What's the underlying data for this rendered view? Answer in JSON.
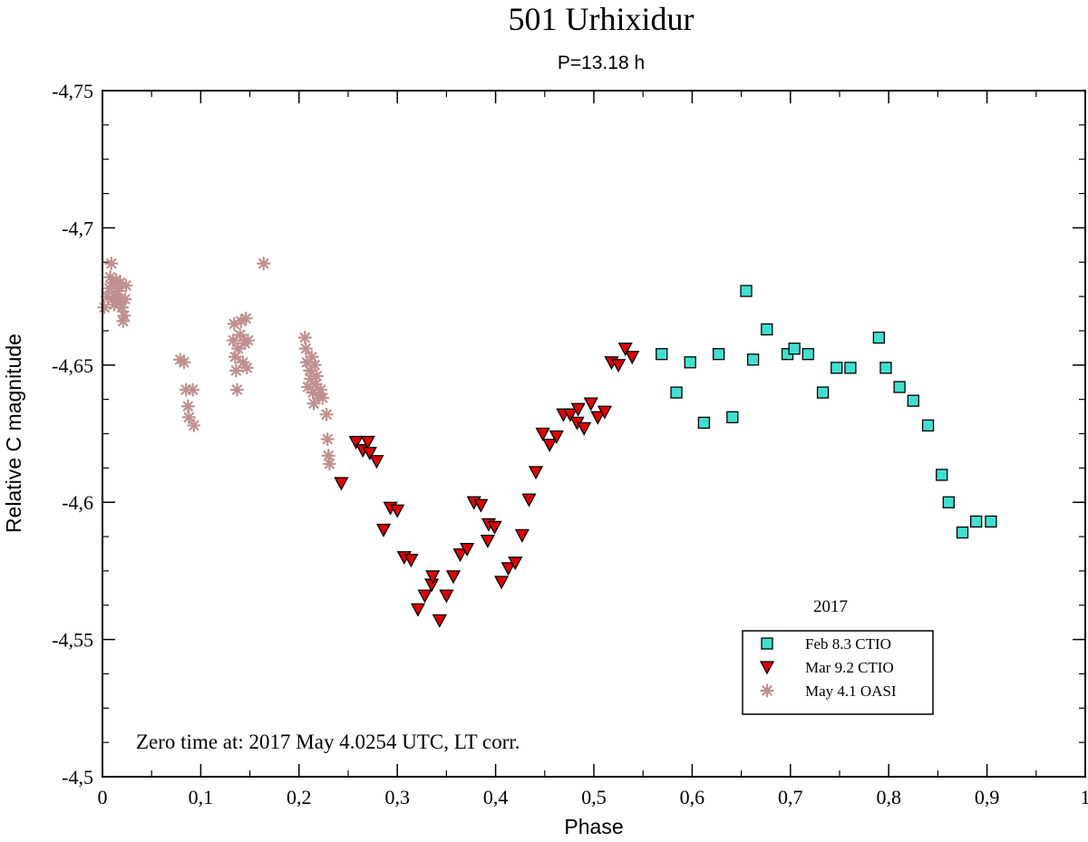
{
  "chart_data": {
    "type": "scatter",
    "title": "501 Urhixidur",
    "subtitle": "P=13.18 h",
    "xlabel": "Phase",
    "ylabel": "Relative C magnitude",
    "xlim": [
      0,
      1
    ],
    "ylim": [
      -4.75,
      -4.5
    ],
    "x_inverted": false,
    "y_inverted": true,
    "xticks": [
      0,
      0.1,
      0.2,
      0.3,
      0.4,
      0.5,
      0.6,
      0.7,
      0.8,
      0.9,
      1
    ],
    "xtick_labels": [
      "0",
      "0,1",
      "0,2",
      "0,3",
      "0,4",
      "0,5",
      "0,6",
      "0,7",
      "0,8",
      "0,9",
      "1"
    ],
    "yticks": [
      -4.75,
      -4.7,
      -4.65,
      -4.6,
      -4.55,
      -4.5
    ],
    "ytick_labels": [
      "-4,75",
      "-4,7",
      "-4,65",
      "-4,6",
      "-4,55",
      "-4,5"
    ],
    "legend_title": "2017",
    "legend_position": "bottom-right",
    "annotation": "Zero time at: 2017 May 4.0254 UTC,  LT corr.",
    "series": [
      {
        "name": "Feb 8.3 CTIO",
        "marker": "square",
        "color": "#40e0d0",
        "points": [
          [
            0.569,
            -4.654
          ],
          [
            0.584,
            -4.64
          ],
          [
            0.598,
            -4.651
          ],
          [
            0.612,
            -4.629
          ],
          [
            0.627,
            -4.654
          ],
          [
            0.641,
            -4.631
          ],
          [
            0.655,
            -4.677
          ],
          [
            0.662,
            -4.652
          ],
          [
            0.676,
            -4.663
          ],
          [
            0.697,
            -4.654
          ],
          [
            0.704,
            -4.656
          ],
          [
            0.718,
            -4.654
          ],
          [
            0.733,
            -4.64
          ],
          [
            0.747,
            -4.649
          ],
          [
            0.761,
            -4.649
          ],
          [
            0.79,
            -4.66
          ],
          [
            0.797,
            -4.649
          ],
          [
            0.811,
            -4.642
          ],
          [
            0.825,
            -4.637
          ],
          [
            0.84,
            -4.628
          ],
          [
            0.854,
            -4.61
          ],
          [
            0.861,
            -4.6
          ],
          [
            0.875,
            -4.589
          ],
          [
            0.889,
            -4.593
          ],
          [
            0.904,
            -4.593
          ]
        ]
      },
      {
        "name": "Mar 9.2 CTIO",
        "marker": "triangle-down",
        "color": "#e00000",
        "points": [
          [
            0.243,
            -4.607
          ],
          [
            0.258,
            -4.622
          ],
          [
            0.265,
            -4.619
          ],
          [
            0.27,
            -4.622
          ],
          [
            0.272,
            -4.618
          ],
          [
            0.279,
            -4.615
          ],
          [
            0.286,
            -4.59
          ],
          [
            0.293,
            -4.598
          ],
          [
            0.3,
            -4.597
          ],
          [
            0.307,
            -4.58
          ],
          [
            0.314,
            -4.579
          ],
          [
            0.321,
            -4.561
          ],
          [
            0.328,
            -4.566
          ],
          [
            0.335,
            -4.57
          ],
          [
            0.336,
            -4.573
          ],
          [
            0.343,
            -4.557
          ],
          [
            0.35,
            -4.566
          ],
          [
            0.357,
            -4.573
          ],
          [
            0.364,
            -4.581
          ],
          [
            0.371,
            -4.583
          ],
          [
            0.378,
            -4.6
          ],
          [
            0.385,
            -4.599
          ],
          [
            0.392,
            -4.586
          ],
          [
            0.393,
            -4.592
          ],
          [
            0.399,
            -4.591
          ],
          [
            0.406,
            -4.571
          ],
          [
            0.413,
            -4.576
          ],
          [
            0.42,
            -4.578
          ],
          [
            0.427,
            -4.588
          ],
          [
            0.434,
            -4.601
          ],
          [
            0.441,
            -4.611
          ],
          [
            0.448,
            -4.625
          ],
          [
            0.455,
            -4.621
          ],
          [
            0.462,
            -4.624
          ],
          [
            0.469,
            -4.632
          ],
          [
            0.476,
            -4.632
          ],
          [
            0.483,
            -4.629
          ],
          [
            0.484,
            -4.634
          ],
          [
            0.49,
            -4.627
          ],
          [
            0.497,
            -4.636
          ],
          [
            0.504,
            -4.631
          ],
          [
            0.511,
            -4.633
          ],
          [
            0.518,
            -4.651
          ],
          [
            0.525,
            -4.65
          ],
          [
            0.532,
            -4.656
          ],
          [
            0.539,
            -4.653
          ]
        ]
      },
      {
        "name": "May 4.1 OASI",
        "marker": "asterisk",
        "color": "#c09090",
        "points": [
          [
            0.002,
            -4.671
          ],
          [
            0.005,
            -4.675
          ],
          [
            0.007,
            -4.678
          ],
          [
            0.008,
            -4.682
          ],
          [
            0.009,
            -4.687
          ],
          [
            0.01,
            -4.674
          ],
          [
            0.011,
            -4.68
          ],
          [
            0.012,
            -4.672
          ],
          [
            0.013,
            -4.676
          ],
          [
            0.014,
            -4.681
          ],
          [
            0.015,
            -4.673
          ],
          [
            0.016,
            -4.677
          ],
          [
            0.017,
            -4.674
          ],
          [
            0.018,
            -4.68
          ],
          [
            0.02,
            -4.671
          ],
          [
            0.021,
            -4.666
          ],
          [
            0.022,
            -4.668
          ],
          [
            0.023,
            -4.674
          ],
          [
            0.024,
            -4.679
          ],
          [
            0.079,
            -4.652
          ],
          [
            0.083,
            -4.651
          ],
          [
            0.085,
            -4.641
          ],
          [
            0.087,
            -4.635
          ],
          [
            0.088,
            -4.631
          ],
          [
            0.092,
            -4.641
          ],
          [
            0.093,
            -4.628
          ],
          [
            0.133,
            -4.659
          ],
          [
            0.134,
            -4.665
          ],
          [
            0.135,
            -4.653
          ],
          [
            0.136,
            -4.648
          ],
          [
            0.137,
            -4.641
          ],
          [
            0.138,
            -4.656
          ],
          [
            0.14,
            -4.661
          ],
          [
            0.141,
            -4.666
          ],
          [
            0.143,
            -4.651
          ],
          [
            0.145,
            -4.658
          ],
          [
            0.146,
            -4.667
          ],
          [
            0.147,
            -4.649
          ],
          [
            0.148,
            -4.659
          ],
          [
            0.164,
            -4.687
          ],
          [
            0.206,
            -4.66
          ],
          [
            0.207,
            -4.656
          ],
          [
            0.208,
            -4.651
          ],
          [
            0.209,
            -4.642
          ],
          [
            0.211,
            -4.648
          ],
          [
            0.212,
            -4.645
          ],
          [
            0.213,
            -4.653
          ],
          [
            0.214,
            -4.64
          ],
          [
            0.215,
            -4.636
          ],
          [
            0.216,
            -4.65
          ],
          [
            0.217,
            -4.643
          ],
          [
            0.218,
            -4.646
          ],
          [
            0.22,
            -4.639
          ],
          [
            0.222,
            -4.641
          ],
          [
            0.224,
            -4.638
          ],
          [
            0.228,
            -4.632
          ],
          [
            0.229,
            -4.623
          ],
          [
            0.23,
            -4.617
          ],
          [
            0.231,
            -4.614
          ]
        ]
      }
    ]
  }
}
